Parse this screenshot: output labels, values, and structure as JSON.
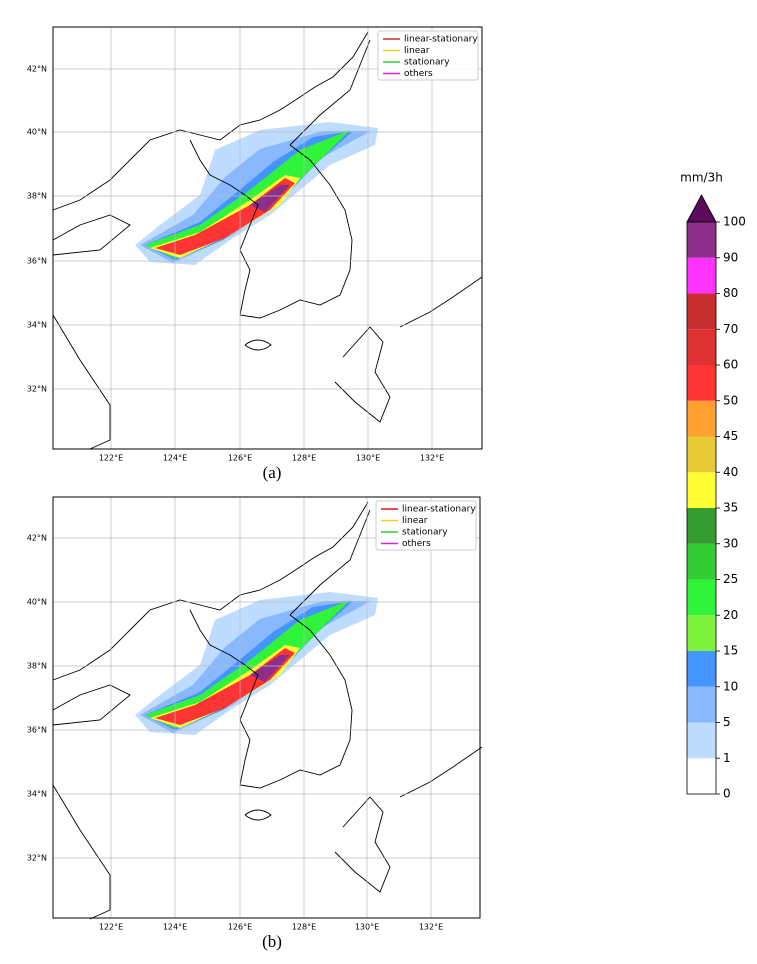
{
  "figure": {
    "panels": [
      {
        "label": "(a)",
        "lat_labels": [
          "42°N",
          "40°N",
          "38°N",
          "36°N",
          "34°N",
          "32°N"
        ],
        "lon_labels": [
          "122°E",
          "124°E",
          "126°E",
          "128°E",
          "130°E",
          "132°E"
        ],
        "legend": [
          {
            "name": "linear-stationary",
            "color": "#d62728"
          },
          {
            "name": "linear",
            "color": "#f2d31b"
          },
          {
            "name": "stationary",
            "color": "#33cc33"
          },
          {
            "name": "others",
            "color": "#e020e0"
          }
        ]
      },
      {
        "label": "(b)",
        "lat_labels": [
          "42°N",
          "40°N",
          "38°N",
          "36°N",
          "34°N",
          "32°N"
        ],
        "lon_labels": [
          "122°E",
          "124°E",
          "126°E",
          "128°E",
          "130°E",
          "132°E"
        ],
        "legend": [
          {
            "name": "linear-stationary",
            "color": "#ee1111"
          },
          {
            "name": "linear",
            "color": "#f2d31b"
          },
          {
            "name": "stationary",
            "color": "#33cc33"
          },
          {
            "name": "others",
            "color": "#e020e0"
          }
        ]
      }
    ],
    "colorbar": {
      "title": "mm/3h",
      "levels": [
        0,
        1,
        5,
        10,
        15,
        20,
        25,
        30,
        35,
        40,
        45,
        50,
        60,
        70,
        80,
        90,
        100
      ],
      "colors": [
        "#ffffff",
        "#bedcff",
        "#8ab8ff",
        "#4595ff",
        "#7ef23d",
        "#30f43a",
        "#36cc36",
        "#349c30",
        "#ffff33",
        "#e8c936",
        "#ffa030",
        "#ff3535",
        "#de3232",
        "#c83030",
        "#ff33ff",
        "#8b2f8b"
      ],
      "extend_color": "#5c0a5c"
    }
  }
}
